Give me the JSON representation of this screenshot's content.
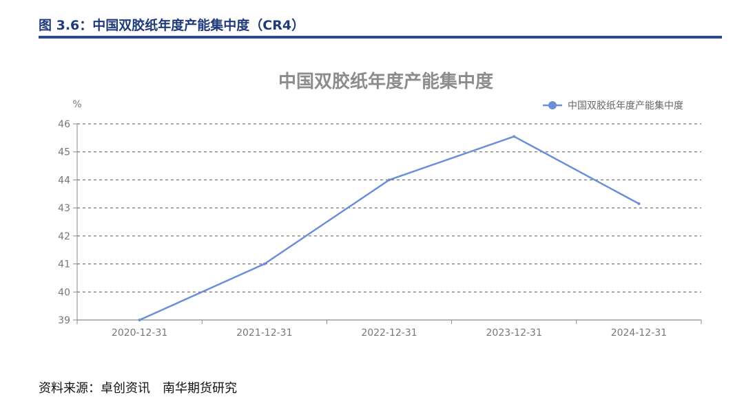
{
  "figure": {
    "title": "图 3.6：中国双胶纸年度产能集中度（CR4）",
    "source": "资料来源：卓创资讯　南华期货研究"
  },
  "chart_data": {
    "type": "line",
    "title": "中国双胶纸年度产能集中度",
    "ylabel": "%",
    "categories": [
      "2020-12-31",
      "2021-12-31",
      "2022-12-31",
      "2023-12-31",
      "2024-12-31"
    ],
    "series": [
      {
        "name": "中国双胶纸年度产能集中度",
        "values": [
          39.0,
          41.0,
          44.0,
          45.55,
          43.15
        ],
        "color": "#6a8fd8"
      }
    ],
    "ylim": [
      39,
      46
    ],
    "yticks": [
      39,
      40,
      41,
      42,
      43,
      44,
      45,
      46
    ],
    "grid": true,
    "legend_position": "top-right"
  }
}
